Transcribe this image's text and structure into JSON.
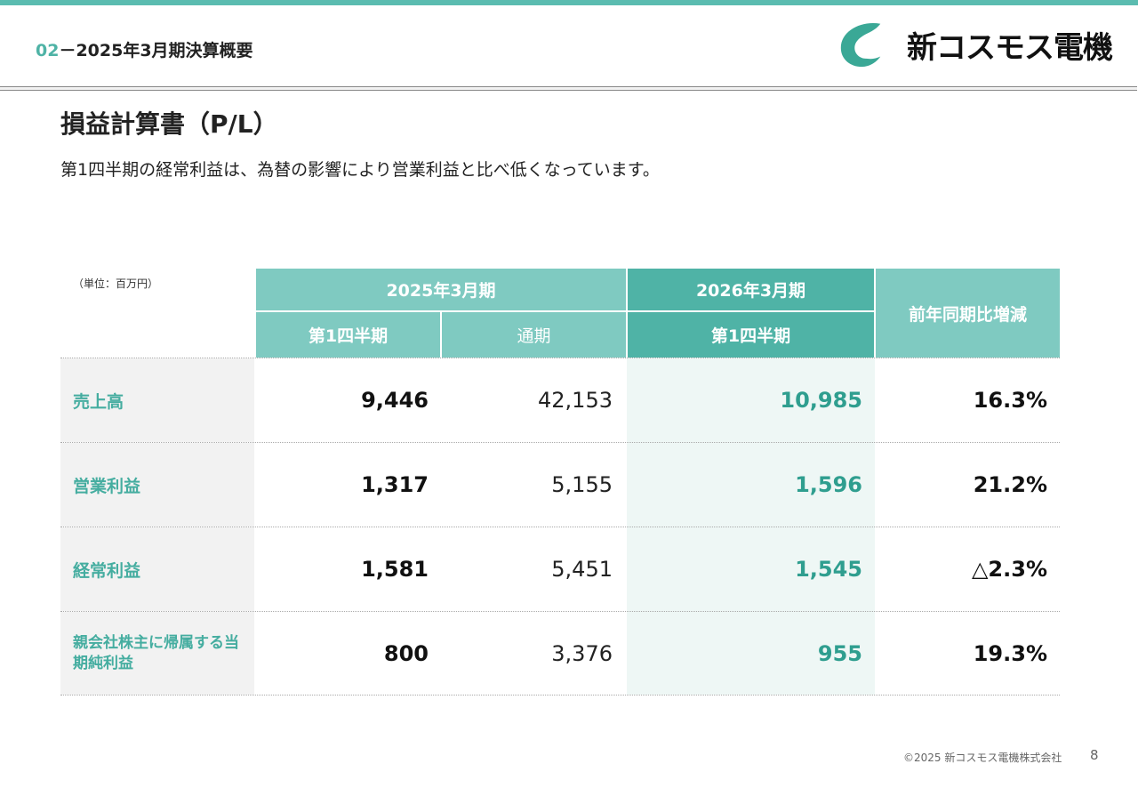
{
  "header": {
    "section_number": "02",
    "section_title": "－2025年3月期決算概要",
    "company_logo_text": "新コスモス電機"
  },
  "title": "損益計算書（P/L）",
  "subtitle": "第1四半期の経常利益は、為替の影響により営業利益と比べ低くなっています。",
  "unit_note": "（単位：百万円）",
  "table": {
    "group_2025": "2025年3月期",
    "group_2026": "2026年3月期",
    "yoy_header": "前年同期比増減",
    "sub_q1_2025": "第1四半期",
    "sub_full_2025": "通期",
    "sub_q1_2026": "第1四半期",
    "rows": [
      {
        "label": "売上高",
        "q1_2025": "9,446",
        "full_2025": "42,153",
        "q1_2026": "10,985",
        "yoy": "16.3%"
      },
      {
        "label": "営業利益",
        "q1_2025": "1,317",
        "full_2025": "5,155",
        "q1_2026": "1,596",
        "yoy": "21.2%"
      },
      {
        "label": "経常利益",
        "q1_2025": "1,581",
        "full_2025": "5,451",
        "q1_2026": "1,545",
        "yoy": "△2.3%"
      },
      {
        "label": "親会社株主に帰属する当期純利益",
        "q1_2025": "800",
        "full_2025": "3,376",
        "q1_2026": "955",
        "yoy": "19.3%"
      }
    ]
  },
  "footer": {
    "copyright": "©2025 新コスモス電機株式会社",
    "page_number": "8"
  },
  "colors": {
    "accent_light": "#7fcac1",
    "accent_dark": "#4fb3a6",
    "label_text": "#45ada0",
    "highlight_value": "#2f9e8f"
  }
}
